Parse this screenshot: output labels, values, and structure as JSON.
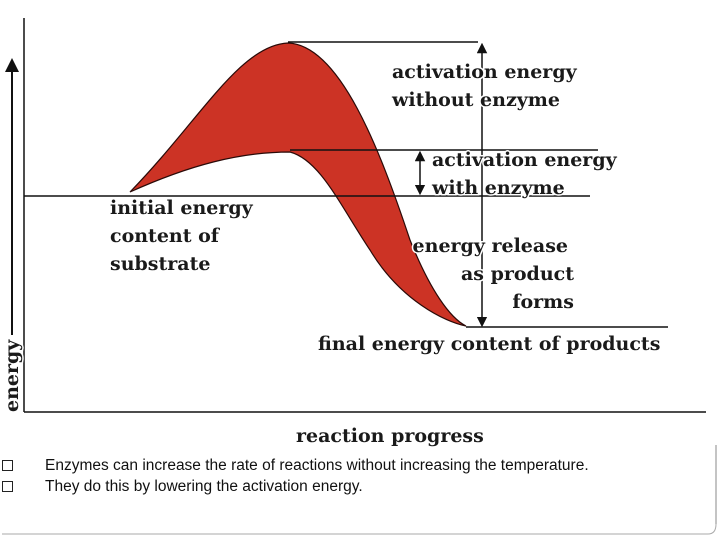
{
  "diagram": {
    "colors": {
      "curve_fill": "#cc3325",
      "line": "#111111",
      "background": "#ffffff"
    },
    "labels": {
      "activation_without_line1": "activation energy",
      "activation_without_line2": "without enzyme",
      "activation_with_line1": "activation energy",
      "activation_with_line2": "with enzyme",
      "initial_line1": "initial energy",
      "initial_line2": "content of",
      "initial_line3": "substrate",
      "release_line1": "energy release",
      "release_line2": "as product",
      "release_line3": "forms",
      "final": "final energy content of products",
      "y_axis": "energy",
      "x_axis": "reaction progress"
    }
  },
  "bullets": [
    {
      "text": "Enzymes can increase the rate of reactions without increasing the temperature."
    },
    {
      "text": "They do this by lowering the activation energy."
    }
  ]
}
